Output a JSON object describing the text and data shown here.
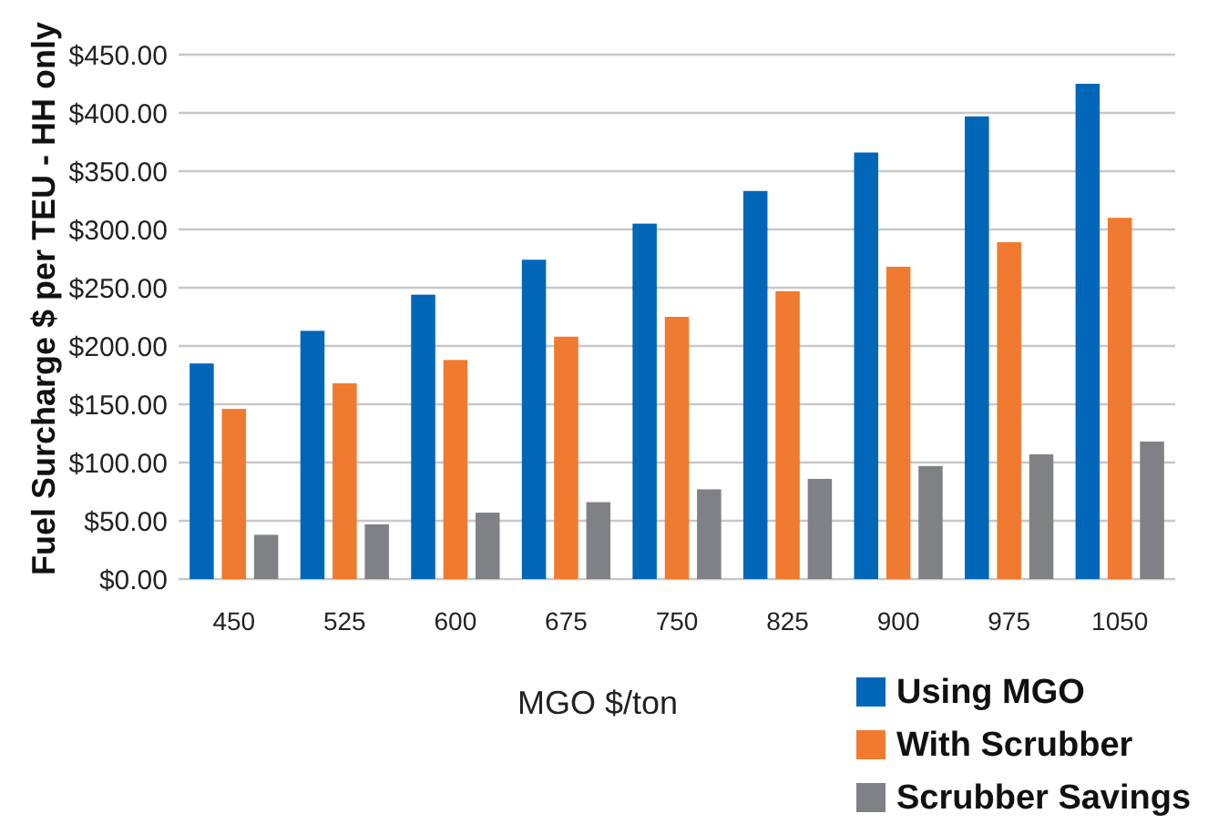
{
  "chart_data": {
    "type": "bar",
    "xlabel": "MGO $/ton",
    "ylabel": "Fuel Surcharge $ per TEU - HH only",
    "categories": [
      "450",
      "525",
      "600",
      "675",
      "750",
      "825",
      "900",
      "975",
      "1050"
    ],
    "series": [
      {
        "name": "Using MGO",
        "color": "#0066b8",
        "values": [
          185,
          213,
          244,
          274,
          305,
          333,
          366,
          397,
          425
        ]
      },
      {
        "name": "With Scrubber",
        "color": "#f07a30",
        "values": [
          146,
          168,
          188,
          208,
          225,
          247,
          268,
          289,
          310
        ]
      },
      {
        "name": "Scrubber Savings",
        "color": "#808184",
        "values": [
          38,
          47,
          57,
          66,
          77,
          86,
          97,
          107,
          118
        ]
      }
    ],
    "ylim": [
      0,
      450
    ],
    "yticks": [
      {
        "value": 0,
        "label": "$0.00"
      },
      {
        "value": 50,
        "label": "$50.00"
      },
      {
        "value": 100,
        "label": "$100.00"
      },
      {
        "value": 150,
        "label": "$150.00"
      },
      {
        "value": 200,
        "label": "$200.00"
      },
      {
        "value": 250,
        "label": "$250.00"
      },
      {
        "value": 300,
        "label": "$300.00"
      },
      {
        "value": 350,
        "label": "$350.00"
      },
      {
        "value": 400,
        "label": "$400.00"
      },
      {
        "value": 450,
        "label": "$450.00"
      }
    ],
    "grid": "y",
    "legend": "bottom right"
  }
}
